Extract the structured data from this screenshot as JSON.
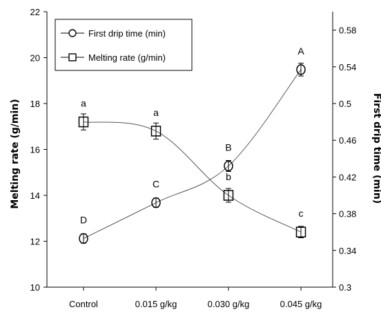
{
  "chart_data": {
    "type": "line",
    "categories": [
      "Control",
      "0.015 g/kg",
      "0.030 g/kg",
      "0.045 g/kg"
    ],
    "y_left": {
      "label": "Melting rate (g/min)",
      "ylim": [
        10,
        22
      ],
      "ticks": [
        "10",
        "12",
        "14",
        "16",
        "18",
        "20",
        "22"
      ]
    },
    "y_right": {
      "label": "First drip time (min)",
      "ylim": [
        0.3,
        0.6
      ],
      "ticks": [
        "0.3",
        "0.34",
        "0.38",
        "0.42",
        "0.46",
        "0.5",
        "0.54",
        "0.58"
      ]
    },
    "series": [
      {
        "name": "First drip time (min)",
        "axis": "right",
        "marker": "circle",
        "values": [
          0.353,
          0.392,
          0.432,
          0.537
        ],
        "errors": [
          0.005,
          0.005,
          0.006,
          0.007
        ],
        "labels": [
          "D",
          "C",
          "B",
          "A"
        ]
      },
      {
        "name": "Melting rate (g/min)",
        "axis": "left",
        "marker": "square",
        "values": [
          17.2,
          16.8,
          14.0,
          12.4
        ],
        "errors": [
          0.35,
          0.35,
          0.3,
          0.25
        ],
        "labels": [
          "a",
          "a",
          "b",
          "c"
        ]
      }
    ],
    "legend_position": "top-left",
    "grid": false
  }
}
